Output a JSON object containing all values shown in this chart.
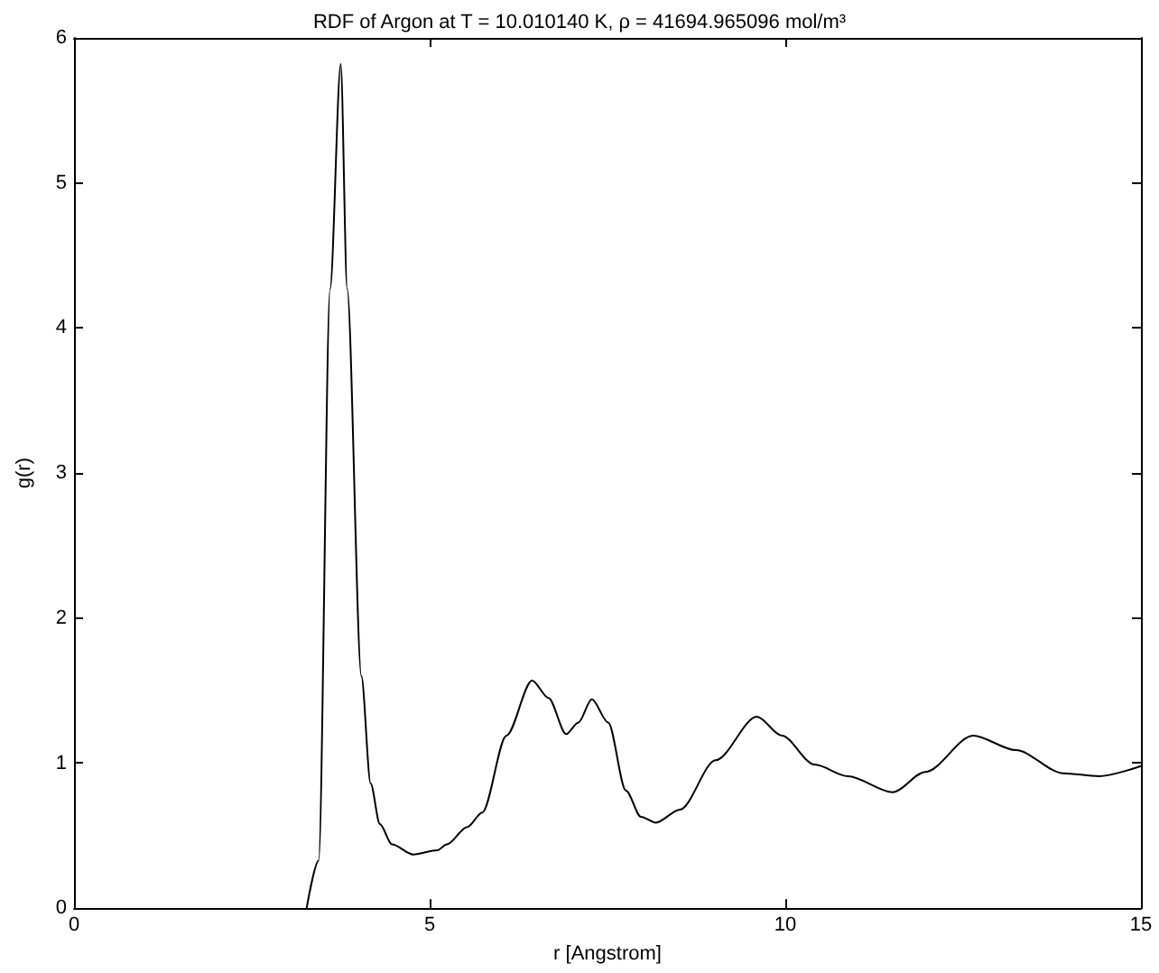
{
  "chart_data": {
    "type": "line",
    "title": "RDF of Argon at T = 10.010140 K, ρ = 41694.965096 mol/m³",
    "xlabel": "r [Angstrom]",
    "ylabel": "g(r)",
    "series": [
      {
        "color": "#000000",
        "x": [
          3.27,
          3.44,
          3.6,
          3.75,
          3.84,
          4.04,
          4.17,
          4.3,
          4.47,
          4.77,
          5.11,
          5.24,
          5.53,
          5.74,
          6.08,
          6.44,
          6.67,
          6.92,
          7.09,
          7.28,
          7.51,
          7.76,
          7.97,
          8.18,
          8.52,
          9.02,
          9.6,
          9.95,
          10.41,
          10.88,
          11.51,
          11.97,
          12.64,
          13.24,
          13.91,
          14.41,
          15
        ],
        "values": [
          0,
          0.33,
          4.27,
          5.82,
          4.27,
          1.6,
          0.86,
          0.58,
          0.44,
          0.37,
          0.4,
          0.44,
          0.56,
          0.66,
          1.19,
          1.57,
          1.45,
          1.2,
          1.28,
          1.44,
          1.28,
          0.81,
          0.63,
          0.59,
          0.68,
          1.02,
          1.32,
          1.19,
          0.99,
          0.91,
          0.8,
          0.94,
          1.19,
          1.09,
          0.93,
          0.91,
          0.98
        ]
      }
    ],
    "xlim": [
      0,
      15
    ],
    "xticks": [
      0,
      5,
      10,
      15
    ],
    "ylim": [
      0,
      6
    ],
    "yticks": [
      0,
      1,
      2,
      3,
      4,
      5,
      6
    ],
    "grid": false,
    "marker": "none",
    "line_style": "solid"
  }
}
